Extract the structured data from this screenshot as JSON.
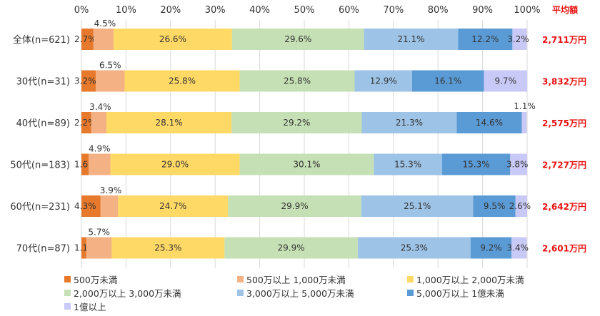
{
  "chart_data": {
    "type": "bar",
    "orientation": "horizontal",
    "stacked": "percent",
    "title": "",
    "xlabel": "",
    "ylabel": "",
    "xlim": [
      0,
      100
    ],
    "x_ticks": [
      "0%",
      "10%",
      "20%",
      "30%",
      "40%",
      "50%",
      "60%",
      "70%",
      "80%",
      "90%",
      "100%"
    ],
    "categories": [
      "全体(n=621)",
      "30代(n=31)",
      "40代(n=89)",
      "50代(n=183)",
      "60代(n=231)",
      "70代(n=87)"
    ],
    "series": [
      {
        "name": "500万未満",
        "color": "#e6792b",
        "values": [
          2.7,
          3.2,
          2.2,
          1.6,
          4.3,
          1.1
        ]
      },
      {
        "name": "500万以上 1,000万未満",
        "color": "#f4b183",
        "values": [
          4.5,
          6.5,
          3.4,
          4.9,
          3.9,
          5.7
        ]
      },
      {
        "name": "1,000万以上 2,000万未満",
        "color": "#ffd966",
        "values": [
          26.6,
          25.8,
          28.1,
          29.0,
          24.7,
          25.3
        ]
      },
      {
        "name": "2,000万以上 3,000万未満",
        "color": "#c5e0b4",
        "values": [
          29.6,
          25.8,
          29.2,
          30.1,
          29.9,
          29.9
        ]
      },
      {
        "name": "3,000万以上 5,000万未満",
        "color": "#9dc3e6",
        "values": [
          21.1,
          12.9,
          21.3,
          15.3,
          25.1,
          25.3
        ]
      },
      {
        "name": "5,000万以上 1億未満",
        "color": "#5b9bd5",
        "values": [
          12.2,
          16.1,
          14.6,
          15.3,
          9.5,
          9.2
        ]
      },
      {
        "name": "1億以上",
        "color": "#c9c9f7",
        "values": [
          3.2,
          9.7,
          1.1,
          3.8,
          2.6,
          3.4
        ]
      }
    ],
    "average_header": "平均額",
    "averages": [
      "2,711万円",
      "3,832万円",
      "2,575万円",
      "2,727万円",
      "2,642万円",
      "2,601万円"
    ],
    "grid": true,
    "legend_position": "bottom",
    "accent_color": "#e8110f"
  }
}
